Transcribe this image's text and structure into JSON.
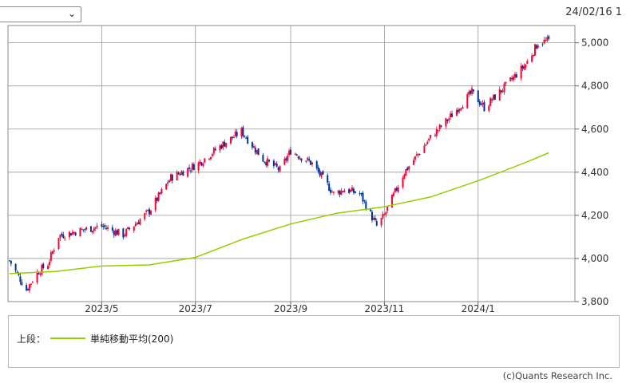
{
  "header": {
    "select_value": "",
    "date_text": "24/02/16 1"
  },
  "legend": {
    "prefix": "上段：",
    "series_name": "単純移動平均(200)",
    "line_color": "#99cc00"
  },
  "copyright": "(c)Quants Research Inc.",
  "colors": {
    "up": "#ff0033",
    "down": "#003399",
    "grid": "#999999",
    "ma": "#99cc00"
  },
  "chart_data": {
    "type": "line",
    "ylim": [
      3800,
      5080
    ],
    "yticks": [
      3800,
      4000,
      4200,
      4400,
      4600,
      4800,
      5000
    ],
    "ytick_labels": [
      "3,800",
      "4,000",
      "4,200",
      "4,400",
      "4,600",
      "4,800",
      "5,000"
    ],
    "xtick_labels": [
      "2023/5",
      "2023/7",
      "2023/9",
      "2023/11",
      "2024/1"
    ],
    "xtick_dates": [
      "2023-05-01",
      "2023-07-01",
      "2023-09-01",
      "2023-11-01",
      "2024-01-01"
    ],
    "xlim": [
      "2023-03-01",
      "2024-03-04"
    ],
    "grid": true,
    "price_series": {
      "type": "candlestick",
      "dates": [
        "2023-03-02",
        "2023-03-13",
        "2023-03-20",
        "2023-03-27",
        "2023-04-03",
        "2023-04-17",
        "2023-05-01",
        "2023-05-15",
        "2023-06-01",
        "2023-06-15",
        "2023-07-03",
        "2023-07-17",
        "2023-07-31",
        "2023-08-14",
        "2023-08-25",
        "2023-09-01",
        "2023-09-15",
        "2023-09-29",
        "2023-10-06",
        "2023-10-16",
        "2023-10-27",
        "2023-11-01",
        "2023-11-14",
        "2023-12-01",
        "2023-12-13",
        "2023-12-28",
        "2024-01-05",
        "2024-01-19",
        "2024-02-01",
        "2024-02-09",
        "2024-02-16"
      ],
      "close": [
        3990,
        3855,
        3935,
        3975,
        4105,
        4130,
        4150,
        4110,
        4220,
        4375,
        4440,
        4520,
        4590,
        4460,
        4410,
        4500,
        4440,
        4300,
        4320,
        4300,
        4150,
        4200,
        4400,
        4560,
        4650,
        4770,
        4700,
        4800,
        4900,
        5000,
        5010
      ]
    },
    "ma_series": {
      "name": "単純移動平均(200)",
      "dates": [
        "2023-03-02",
        "2023-04-01",
        "2023-05-01",
        "2023-06-01",
        "2023-07-01",
        "2023-08-01",
        "2023-09-01",
        "2023-10-01",
        "2023-11-01",
        "2023-12-01",
        "2024-01-01",
        "2024-02-01",
        "2024-02-16"
      ],
      "values": [
        3930,
        3940,
        3965,
        3970,
        4005,
        4090,
        4160,
        4210,
        4240,
        4285,
        4360,
        4445,
        4490
      ]
    }
  }
}
